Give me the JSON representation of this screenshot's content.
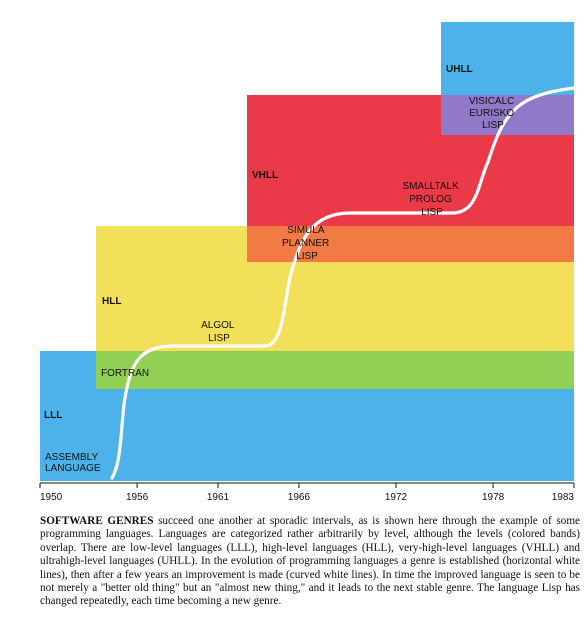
{
  "timeline": {
    "start_year": 1950,
    "end_year": 1983,
    "ticks": [
      "1950",
      "1956",
      "1961",
      "1966",
      "1972",
      "1978",
      "1983"
    ]
  },
  "bands": [
    {
      "key": "lll",
      "label": "LLL",
      "from": 1950,
      "to": 1983,
      "color": "#4db2ea"
    },
    {
      "key": "hll",
      "label": "HLL",
      "from": 1954.8,
      "to": 1983,
      "color": "#f3e05a"
    },
    {
      "key": "vhll",
      "label": "VHLL",
      "from": 1962.8,
      "to": 1983,
      "color": "#ea3a47"
    },
    {
      "key": "uhll",
      "label": "UHLL",
      "from": 1975.5,
      "to": 1983,
      "color": "#4db2ea"
    }
  ],
  "overlap_colors": {
    "lll_hll": "#92cf55",
    "hll_vhll": "#f17a45",
    "vhll_uhll": "#8f79c8"
  },
  "languages": [
    {
      "key": "assembly",
      "lines": [
        "ASSEMBLY",
        "LANGUAGE"
      ]
    },
    {
      "key": "fortran",
      "lines": [
        "FORTRAN"
      ]
    },
    {
      "key": "algol",
      "lines": [
        "ALGOL",
        "LISP"
      ]
    },
    {
      "key": "simula",
      "lines": [
        "SIMULA",
        "PLANNER",
        "LISP"
      ]
    },
    {
      "key": "smalltalk",
      "lines": [
        "SMALLTALK",
        "PROLOG",
        "LISP"
      ]
    },
    {
      "key": "visicalc",
      "lines": [
        "VISICALC",
        "EURISKO",
        "LISP"
      ]
    }
  ],
  "caption": {
    "lead": "SOFTWARE GENRES",
    "body": " succeed one another at sporadic intervals, as is shown here through the example of some programming languages. Languages are categorized rather arbitrarily by level, although the levels (colored bands) overlap. There are low-level languages (LLL), high-level languages (HLL), very-high-level languages (VHLL) and ultrahigh-level languages (UHLL). In the evolution of programming languages a genre is established (horizontal white lines), then after a few years an improvement is made (curved white lines). In time the improved language is seen to be not merely a \"better old thing\" but an \"almost new thing,\" and it leads to the next stable genre. The language Lisp has changed repeatedly, each time becoming a new genre."
  },
  "colors": {
    "curve": "#ffffff",
    "axis": "#111111"
  }
}
